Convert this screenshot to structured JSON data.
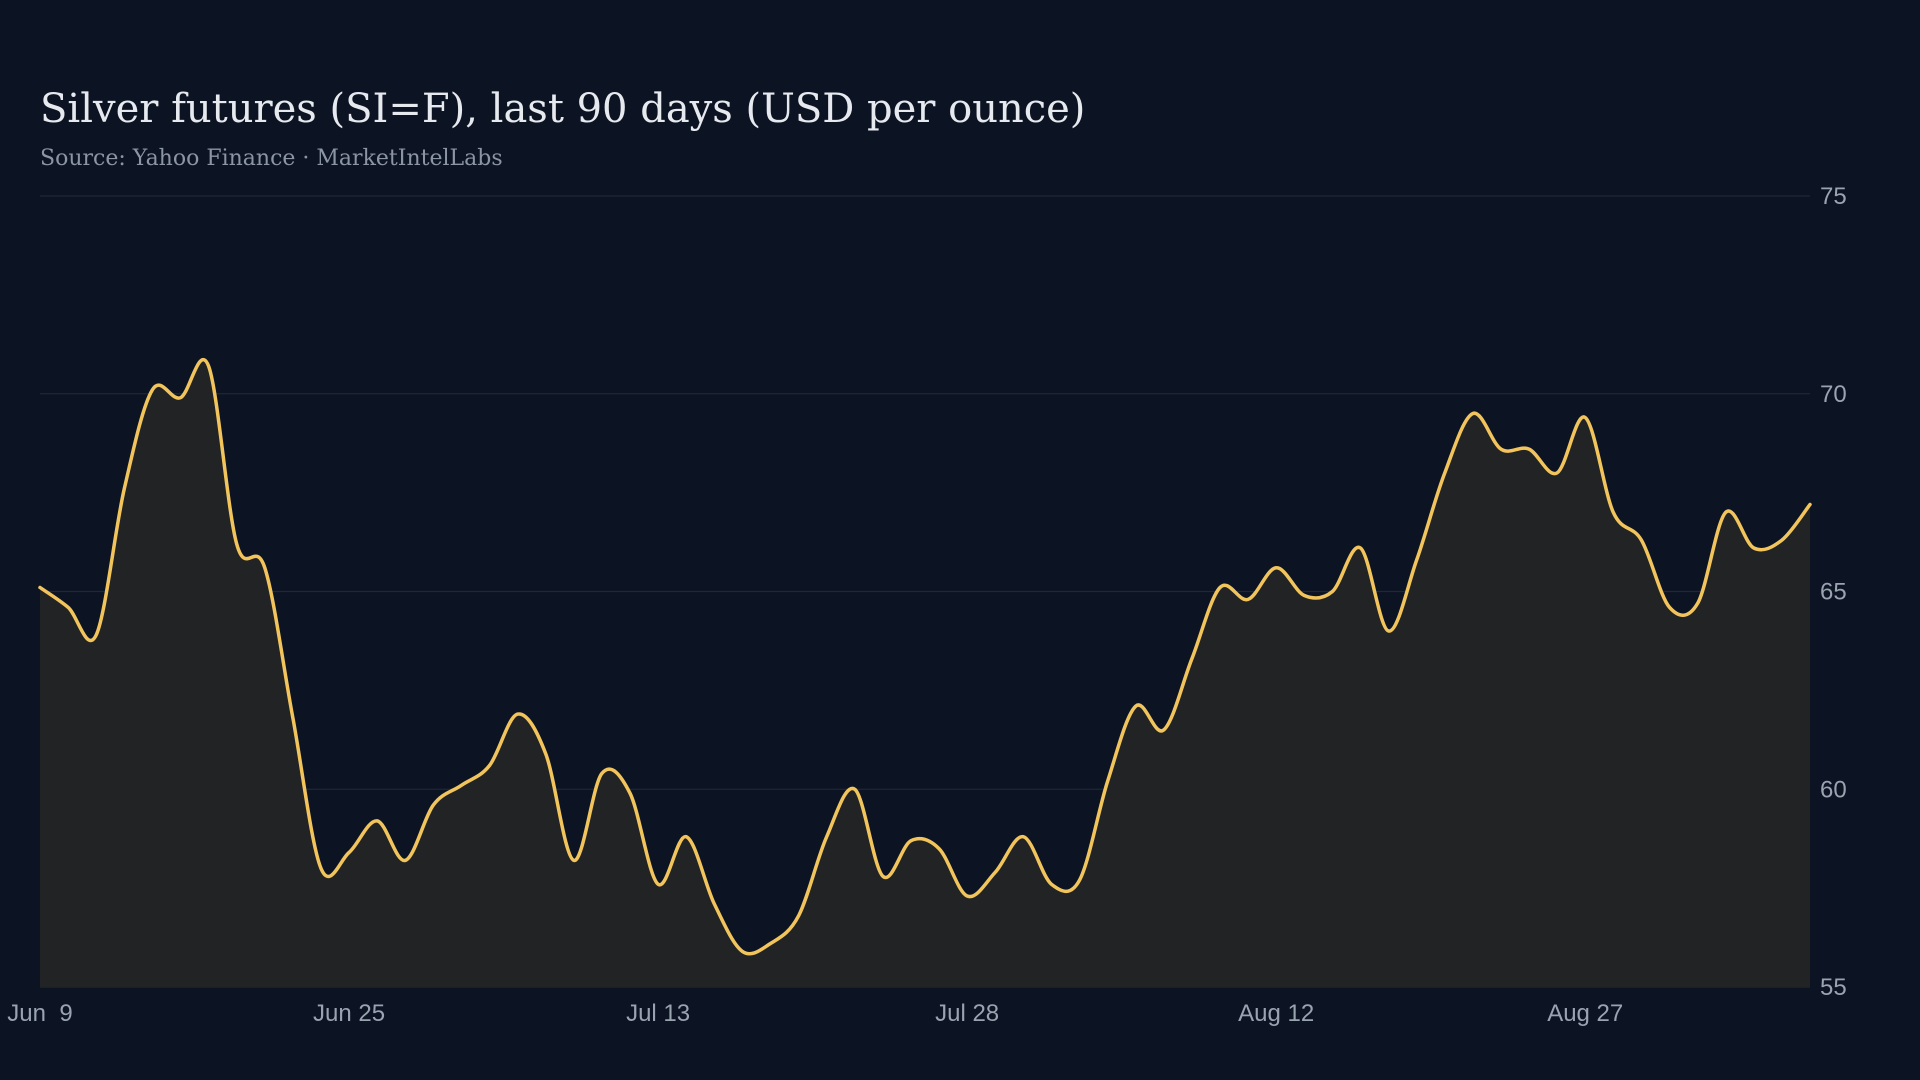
{
  "chart_data": {
    "type": "area",
    "title": "Silver futures (SI=F), last 90 days (USD per ounce)",
    "subtitle": "Source: Yahoo Finance · MarketIntelLabs",
    "xlabel": "",
    "ylabel": "",
    "x_ticks": [
      "Jun  9",
      "Jun 25",
      "Jul 13",
      "Jul 28",
      "Aug 12",
      "Aug 27"
    ],
    "x_tick_index": [
      0,
      11,
      22,
      33,
      44,
      55
    ],
    "y_ticks": [
      55,
      60,
      65,
      70,
      75
    ],
    "ylim": [
      55,
      75
    ],
    "grid": true,
    "y_axis_side": "right",
    "line_color": "#f2c45c",
    "area_color": "#222325",
    "background": "#0c1323",
    "series": [
      {
        "values": [
          65.1,
          64.6,
          63.9,
          67.6,
          70.1,
          69.9,
          70.7,
          66.2,
          65.6,
          61.8,
          58.0,
          58.4,
          59.2,
          58.2,
          59.6,
          60.1,
          60.6,
          61.9,
          60.9,
          58.2,
          60.4,
          59.9,
          57.6,
          58.8,
          57.1,
          55.9,
          56.1,
          56.8,
          58.8,
          60.0,
          57.8,
          58.7,
          58.5,
          57.3,
          57.9,
          58.8,
          57.6,
          57.7,
          60.2,
          62.1,
          61.5,
          63.3,
          65.1,
          64.8,
          65.6,
          64.9,
          65.0,
          66.1,
          64.0,
          65.8,
          68.0,
          69.5,
          68.6,
          68.6,
          68.0,
          69.4,
          67.0,
          66.3,
          64.6,
          64.7,
          67.0,
          66.1,
          66.3,
          67.2
        ]
      }
    ]
  }
}
